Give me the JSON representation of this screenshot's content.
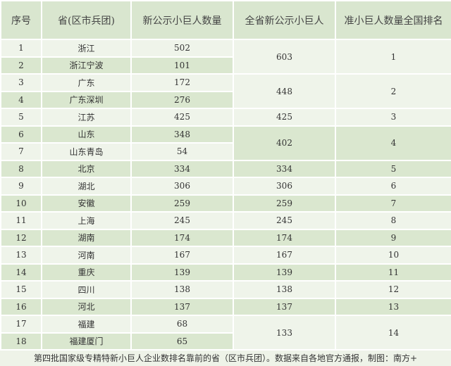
{
  "headers": [
    "序号",
    "省(区市兵团)",
    "新公示小巨人数量",
    "全省新公示小巨人",
    "准小巨人数量全国排名"
  ],
  "rows": [
    {
      "no": "1",
      "region": "浙江",
      "count": "502"
    },
    {
      "no": "2",
      "region": "浙江宁波",
      "count": "101"
    },
    {
      "no": "3",
      "region": "广东",
      "count": "172"
    },
    {
      "no": "4",
      "region": "广东深圳",
      "count": "276"
    },
    {
      "no": "5",
      "region": "江苏",
      "count": "425"
    },
    {
      "no": "6",
      "region": "山东",
      "count": "348"
    },
    {
      "no": "7",
      "region": "山东青岛",
      "count": "54"
    },
    {
      "no": "8",
      "region": "北京",
      "count": "334"
    },
    {
      "no": "9",
      "region": "湖北",
      "count": "306"
    },
    {
      "no": "10",
      "region": "安徽",
      "count": "259"
    },
    {
      "no": "11",
      "region": "上海",
      "count": "245"
    },
    {
      "no": "12",
      "region": "湖南",
      "count": "174"
    },
    {
      "no": "13",
      "region": "河南",
      "count": "167"
    },
    {
      "no": "14",
      "region": "重庆",
      "count": "139"
    },
    {
      "no": "15",
      "region": "四川",
      "count": "138"
    },
    {
      "no": "16",
      "region": "河北",
      "count": "137"
    },
    {
      "no": "17",
      "region": "福建",
      "count": "68"
    },
    {
      "no": "18",
      "region": "福建厦门",
      "count": "65"
    }
  ],
  "groups": [
    {
      "span": 2,
      "total": "603",
      "rank": "1",
      "shade": "light"
    },
    {
      "span": 2,
      "total": "448",
      "rank": "2",
      "shade": "light"
    },
    {
      "span": 1,
      "total": "425",
      "rank": "3"
    },
    {
      "span": 2,
      "total": "402",
      "rank": "4",
      "shade": "dark"
    },
    {
      "span": 1,
      "total": "334",
      "rank": "5"
    },
    {
      "span": 1,
      "total": "306",
      "rank": "6"
    },
    {
      "span": 1,
      "total": "259",
      "rank": "7"
    },
    {
      "span": 1,
      "total": "245",
      "rank": "8"
    },
    {
      "span": 1,
      "total": "174",
      "rank": "9"
    },
    {
      "span": 1,
      "total": "167",
      "rank": "10"
    },
    {
      "span": 1,
      "total": "139",
      "rank": "11"
    },
    {
      "span": 1,
      "total": "138",
      "rank": "12"
    },
    {
      "span": 1,
      "total": "137",
      "rank": "13"
    },
    {
      "span": 2,
      "total": "133",
      "rank": "14",
      "shade": "light"
    }
  ],
  "caption": "第四批国家级专精特新小巨人企业数排名靠前的省（区市兵团）。数据来自各地官方通报，制图：南方+",
  "colors": {
    "header": "#d9e6cf",
    "row_light": "#eff4ea",
    "row_dark": "#dae7cf"
  }
}
